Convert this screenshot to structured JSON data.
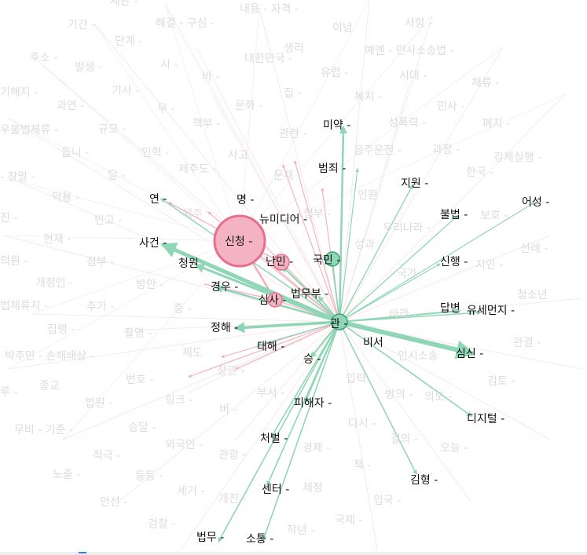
{
  "graph": {
    "colors": {
      "green_edge": "#8fd6b6",
      "green_node_fill": "#8fd6b6",
      "green_node_stroke": "#3f9f77",
      "pink_edge": "#f4aebe",
      "pink_node_fill": "#f4b3c2",
      "pink_node_stroke": "#e86f8c",
      "faint_edge": "#f5e3e6",
      "faint_label": "#dcdcdc",
      "strong_label": "#111111"
    },
    "background_labels": [
      "제한 -",
      "내용 - 자격 -",
      "기간 -",
      "해결 - 구심 -",
      "이념",
      "사항 -",
      "단계 -",
      "주소 -",
      "발생 -",
      "시 -",
      "대한민국 -",
      "생리",
      "예멘 - 민사소송법 -",
      "바 -",
      "유럽 -",
      "시대 -",
      "기해지 -",
      "기사 -",
      "집 -",
      "복지 -",
      "체류 -",
      "과연 -",
      "무 -",
      "문화 -",
      "민사 -",
      "우불법체류 -",
      "규모 -",
      "책부 -",
      "관련 -",
      "성폭력 -",
      "폐지 -",
      "듭니 -",
      "인혁 -",
      "사고",
      "음주운전 -",
      "과장 -",
      "강제실행 -",
      "- 장말 -",
      "달 -",
      "제주도 -",
      "문재 -",
      "한국 -",
      "악용 -",
      "인원",
      "진 -",
      "빈고 -",
      "제주",
      "청부 -",
      "우리나라 -",
      "보호 -",
      "현재 -",
      "성과",
      "의원 -",
      "점부 -",
      "선례 -",
      "개정인 -",
      "방안 -",
      "지인 -",
      "국가",
      "법체류지 -",
      "추가 -",
      "증 -",
      "청소년",
      "집행 -",
      "촬영 -",
      "바라 -",
      "박주민 - 손해배상 -",
      "제도",
      "관결 -",
      "인시소송",
      "루 -",
      "종교",
      "번호 -",
      "장관 -",
      "입력",
      "검토 -",
      "법원 -",
      "링크 -",
      "부서 -",
      "방의 -",
      "의도 -",
      "무비 - 기준 -",
      "승달 -",
      "버 -",
      "다시 -",
      "적극 -",
      "외국인 -",
      "경제 -",
      "결의 -",
      "오늘 -",
      "관광 -",
      "노출 -",
      "등등 -",
      "책 -",
      "세기 -",
      "개진 -",
      "제정",
      "입국 -",
      "안선 -",
      "검찰 -",
      "국제 -",
      "작년 -"
    ],
    "hub_labels": [
      "관 -",
      "국민 -",
      "신청 -",
      "난민 -",
      "심사 -"
    ],
    "labels": [
      "미약 -",
      "범죄 -",
      "지원 -",
      "어성 -",
      "연 -",
      "명 -",
      "불법 -",
      "뉴미디어 -",
      "사건 -",
      "청원",
      "신행 -",
      "경우 -",
      "법무부 -",
      "답변",
      "유세먼지 -",
      "정해 -",
      "대해 -",
      "비서",
      "심신 -",
      "승 -",
      "피해자 -",
      "디지털 -",
      "처벌 -",
      "센터 -",
      "김형 -",
      "법무 -",
      "소통 -"
    ]
  }
}
